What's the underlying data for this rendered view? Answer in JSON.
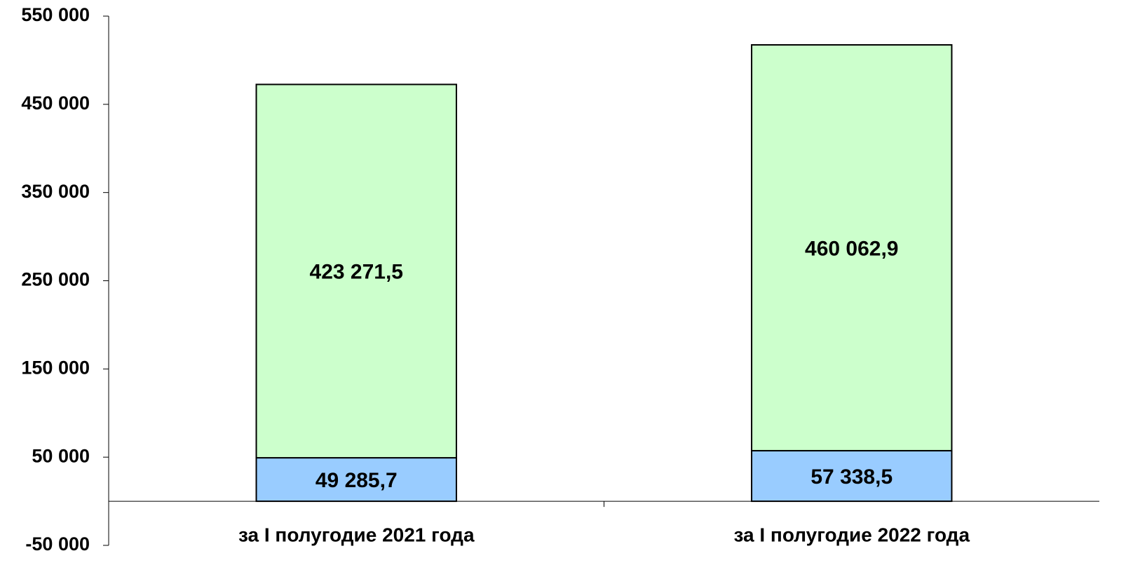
{
  "chart_data": {
    "type": "stacked-bar",
    "categories": [
      "за I полугодие 2021 года",
      "за I полугодие 2022 года"
    ],
    "series": [
      {
        "color": "#99ccff",
        "values": [
          49285.7,
          57338.5
        ],
        "value_labels": [
          "49 285,7",
          "57 338,5"
        ]
      },
      {
        "color": "#ccffcc",
        "values": [
          423271.5,
          460062.9
        ],
        "value_labels": [
          "423 271,5",
          "460 062,9"
        ]
      }
    ],
    "ylim": [
      -50000,
      550000
    ],
    "yticks": [
      {
        "value": -50000,
        "label": "-50 000"
      },
      {
        "value": 50000,
        "label": "50 000"
      },
      {
        "value": 150000,
        "label": "150 000"
      },
      {
        "value": 250000,
        "label": "250 000"
      },
      {
        "value": 350000,
        "label": "350 000"
      },
      {
        "value": 450000,
        "label": "450 000"
      },
      {
        "value": 550000,
        "label": "550 000"
      }
    ],
    "grid": false
  }
}
